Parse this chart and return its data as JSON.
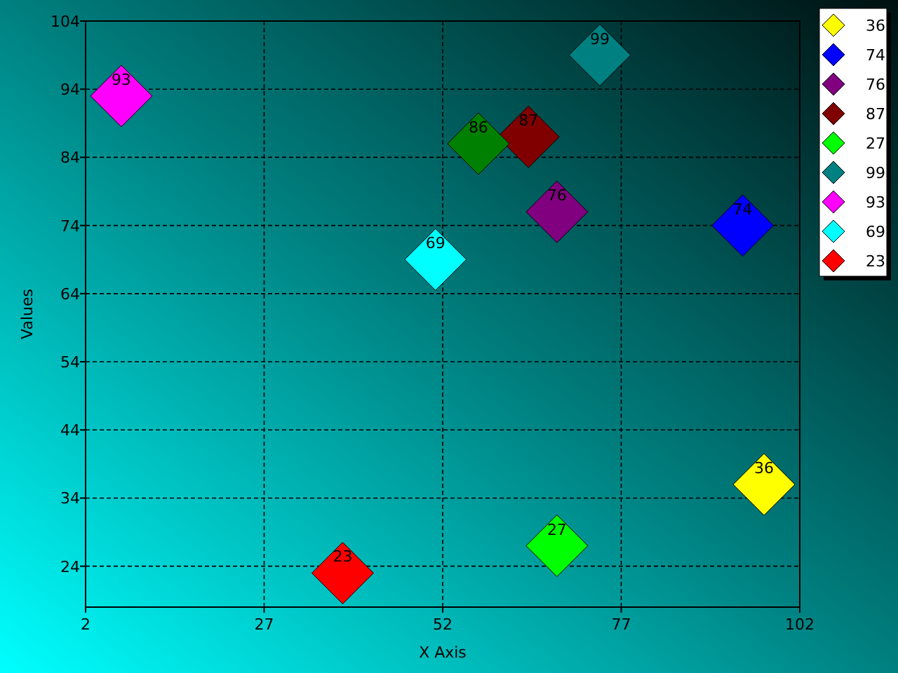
{
  "chart_data": {
    "type": "scatter",
    "xlabel": "X Axis",
    "ylabel": "Values",
    "xlim": [
      2,
      102
    ],
    "xticks": [
      2,
      27,
      52,
      77,
      102
    ],
    "ylim": [
      18,
      104
    ],
    "yticks": [
      24,
      34,
      44,
      54,
      64,
      74,
      84,
      94,
      104
    ],
    "grid": true,
    "legend": "top right",
    "marker": "diamond",
    "data_labels": true,
    "series": [
      {
        "name": "36",
        "color": "#ffff00",
        "x": [
          97
        ],
        "values": [
          36
        ]
      },
      {
        "name": "74",
        "color": "#0000ff",
        "x": [
          94
        ],
        "values": [
          74
        ]
      },
      {
        "name": "76",
        "color": "#800080",
        "x": [
          68
        ],
        "values": [
          76
        ]
      },
      {
        "name": "87",
        "color": "#800000",
        "x": [
          64
        ],
        "values": [
          87
        ]
      },
      {
        "name": "27",
        "color": "#00ff00",
        "x": [
          68
        ],
        "values": [
          27
        ]
      },
      {
        "name": "99",
        "color": "#008080",
        "x": [
          74
        ],
        "values": [
          99
        ]
      },
      {
        "name": "93",
        "color": "#ff00ff",
        "x": [
          7
        ],
        "values": [
          93
        ]
      },
      {
        "name": "69",
        "color": "#00ffff",
        "x": [
          51
        ],
        "values": [
          69
        ]
      },
      {
        "name": "23",
        "color": "#ff0000",
        "x": [
          38
        ],
        "values": [
          23
        ]
      },
      {
        "color": "#008000",
        "x": [
          57
        ],
        "values": [
          86
        ]
      }
    ]
  }
}
